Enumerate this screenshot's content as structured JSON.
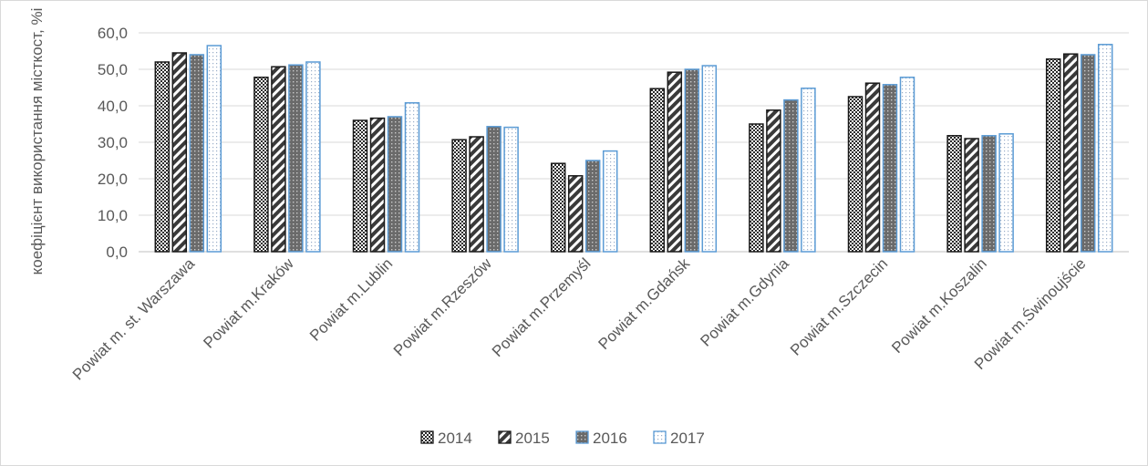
{
  "chart_data": {
    "type": "bar",
    "title": "",
    "xlabel": "",
    "ylabel": "коефіцієнт використання місткост, %і",
    "ylim": [
      0,
      60
    ],
    "yticks": [
      "0,0",
      "10,0",
      "20,0",
      "30,0",
      "40,0",
      "50,0",
      "60,0"
    ],
    "grid": true,
    "legend_position": "bottom",
    "categories": [
      "Powiat m. st. Warszawa",
      "Powiat m.Kraków",
      "Powiat m.Lublin",
      "Powiat m.Rzeszów",
      "Powiat m.Przemyśl",
      "Powiat m.Gdańsk",
      "Powiat m.Gdynia",
      "Powiat m.Szczecin",
      "Powiat m.Koszalin",
      "Powiat m.Świnoujście"
    ],
    "series": [
      {
        "name": "2014",
        "values": [
          52.0,
          47.8,
          36.0,
          30.7,
          24.2,
          44.7,
          35.0,
          42.5,
          31.8,
          52.8
        ]
      },
      {
        "name": "2015",
        "values": [
          54.5,
          50.7,
          36.6,
          31.5,
          20.8,
          49.2,
          38.8,
          46.2,
          31.0,
          54.2
        ]
      },
      {
        "name": "2016",
        "values": [
          54.0,
          51.2,
          37.0,
          34.3,
          25.0,
          50.0,
          41.6,
          45.8,
          31.8,
          54.0
        ]
      },
      {
        "name": "2017",
        "values": [
          56.5,
          52.0,
          40.8,
          34.1,
          27.6,
          51.0,
          44.8,
          47.8,
          32.3,
          56.8
        ]
      }
    ]
  }
}
